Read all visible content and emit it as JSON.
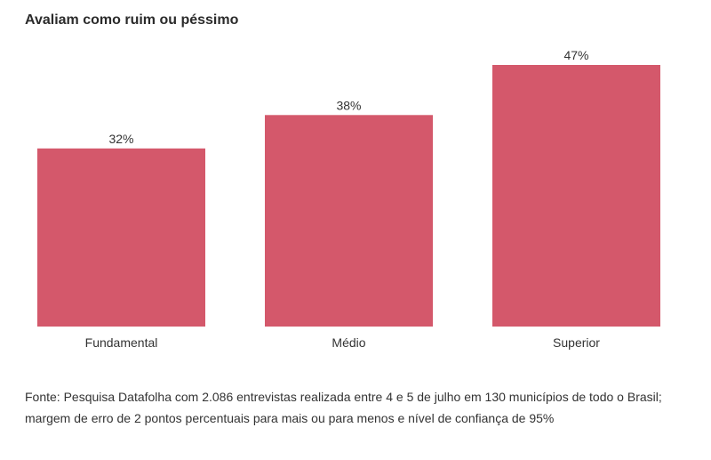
{
  "chart_data": {
    "type": "bar",
    "title": "Avaliam como ruim ou péssimo",
    "categories": [
      "Fundamental",
      "Médio",
      "Superior"
    ],
    "values": [
      32,
      38,
      47
    ],
    "value_labels": [
      "32%",
      "38%",
      "47%"
    ],
    "unit": "%",
    "xlabel": "",
    "ylabel": "",
    "ylim": [
      0,
      47
    ],
    "grid": false,
    "legend": "none",
    "bar_color": "#d4586b"
  },
  "source_note": "Fonte: Pesquisa Datafolha com 2.086 entrevistas realizada entre 4 e 5 de julho em 130 municípios de todo o Brasil; margem de erro de 2 pontos percentuais para mais ou para menos e nível de confiança de 95%"
}
